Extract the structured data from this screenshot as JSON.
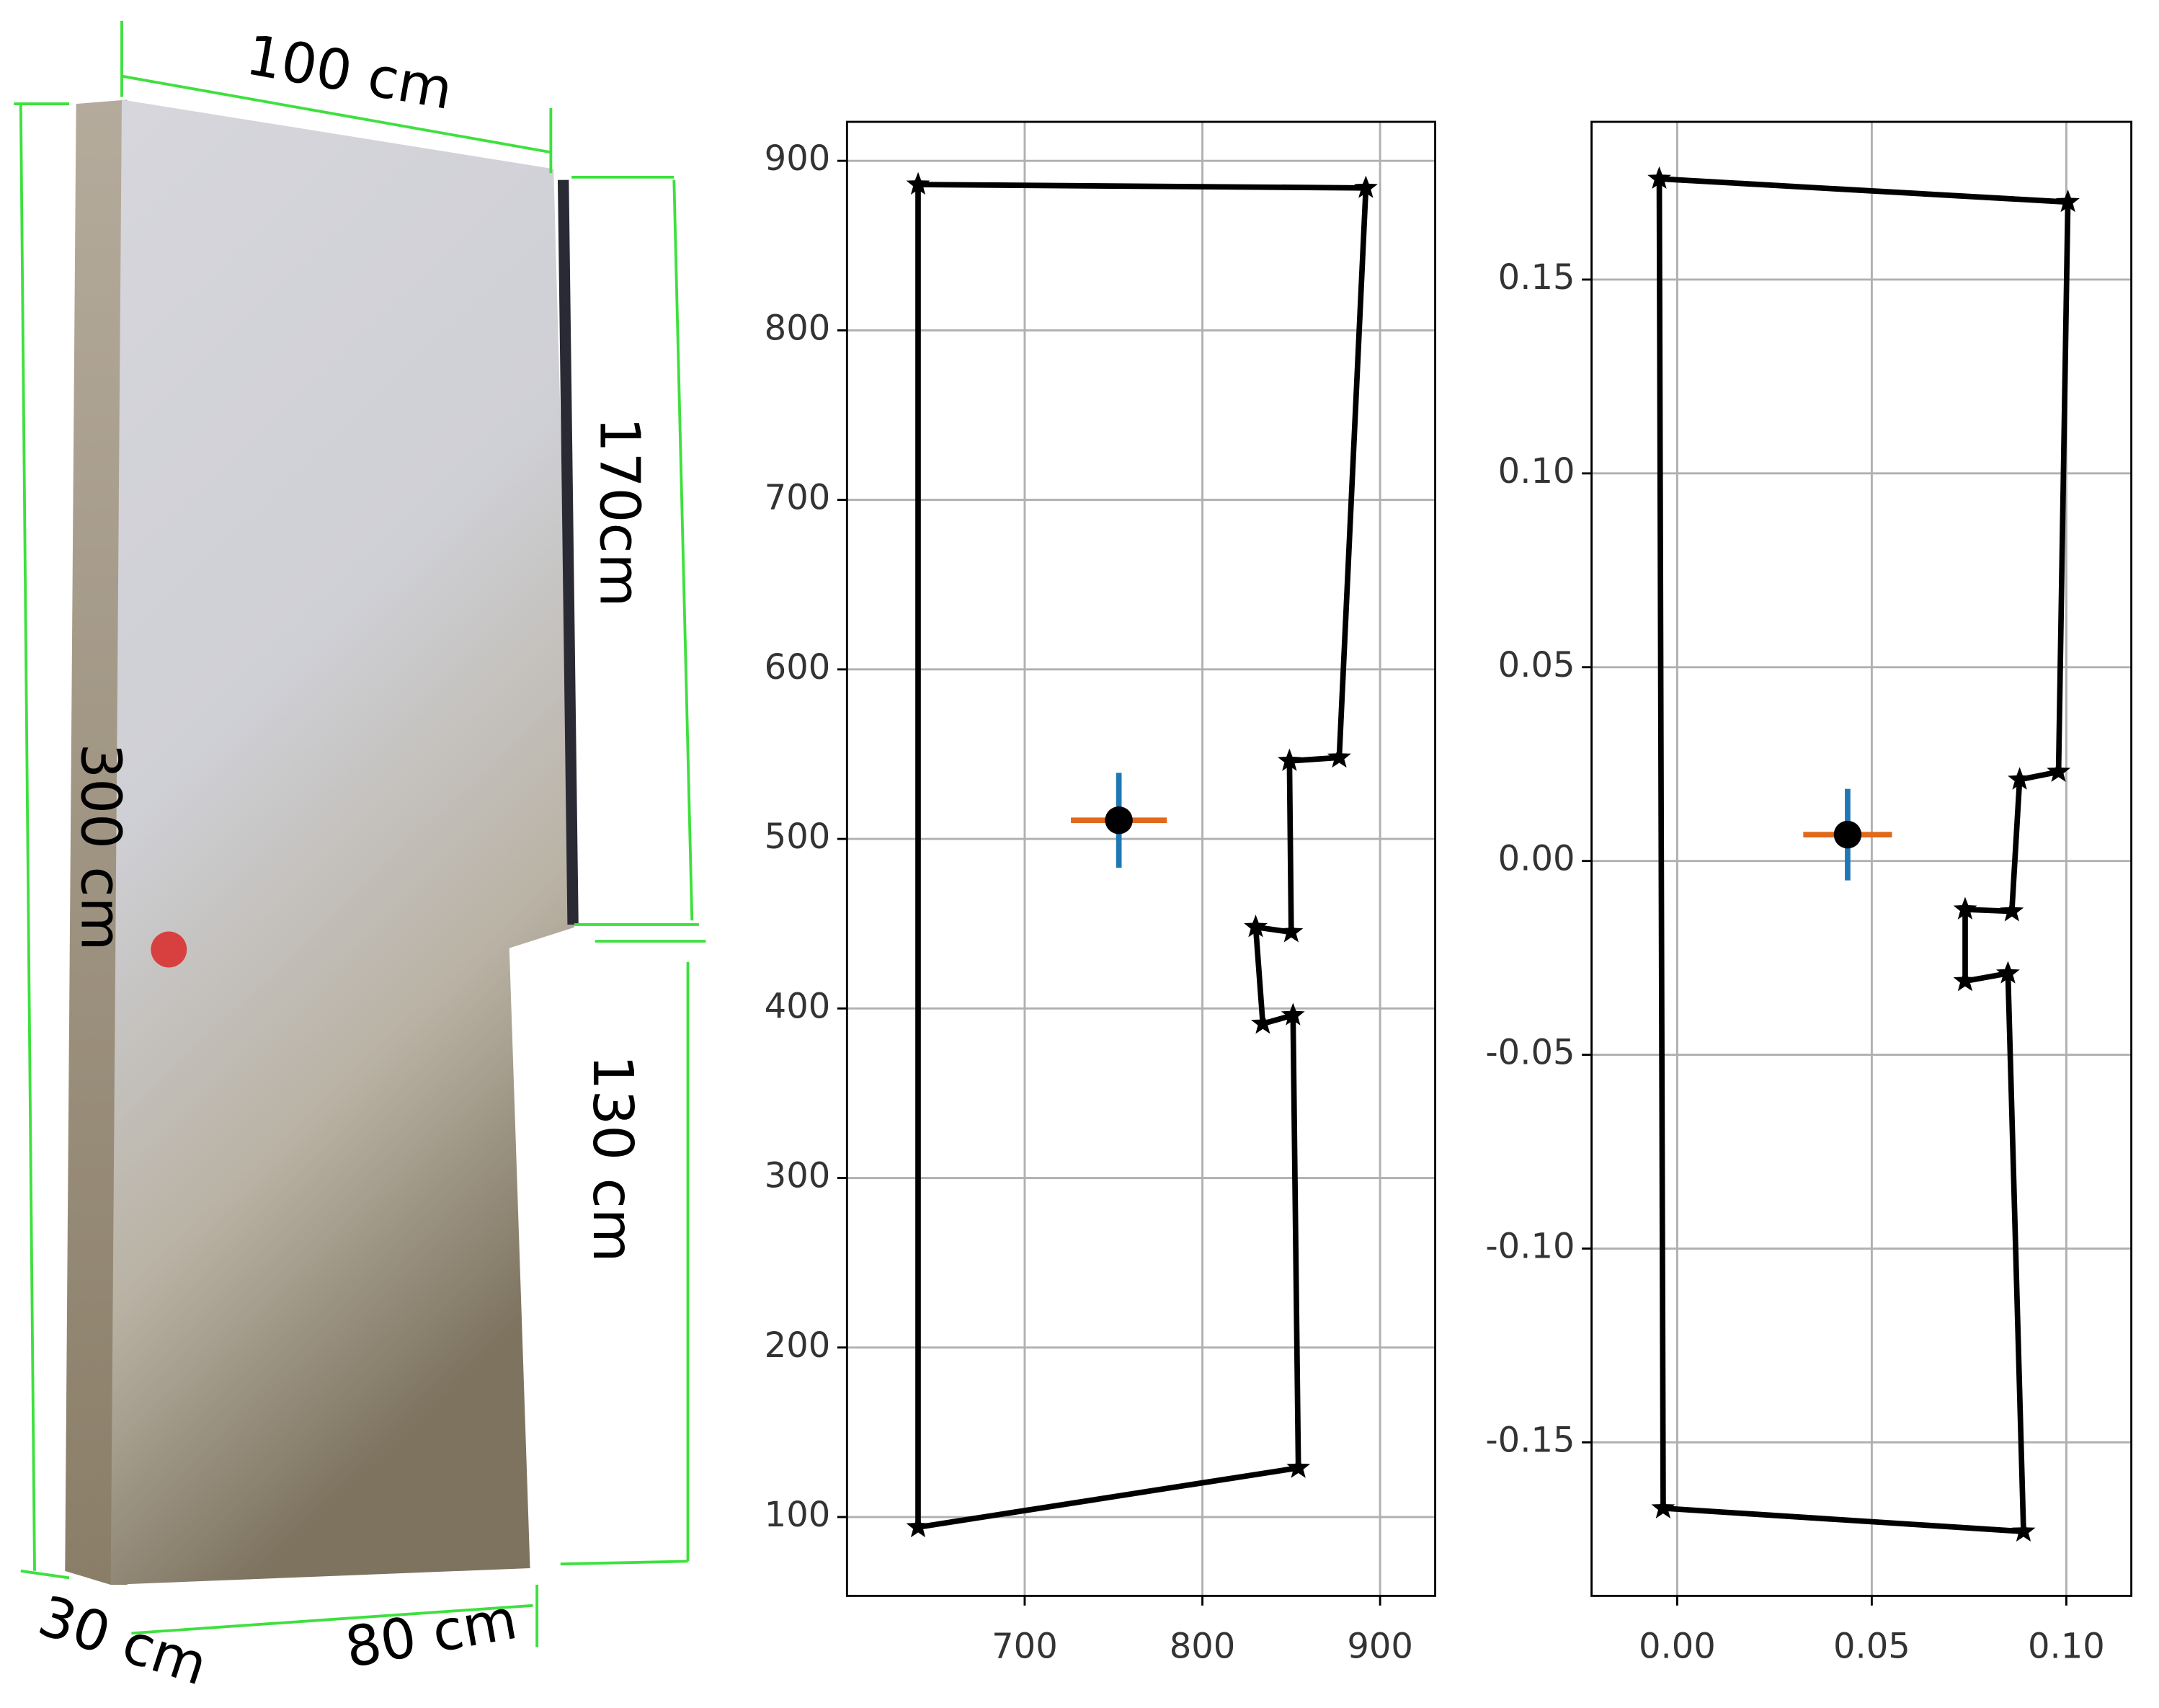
{
  "photo": {
    "labels": [
      "100 cm",
      "170cm",
      "300 cm",
      "130 cm",
      "30 cm",
      "80 cm"
    ]
  },
  "chart_data": [
    {
      "type": "line",
      "closed": true,
      "marker": "star",
      "grid": true,
      "xlim": [
        600,
        931
      ],
      "ylim": [
        53.5,
        923
      ],
      "xticks": [
        700,
        800,
        900
      ],
      "yticks": [
        100,
        200,
        300,
        400,
        500,
        600,
        700,
        800,
        900
      ],
      "series": [
        {
          "color": "#000000",
          "x": [
            640,
            892,
            877,
            849,
            850,
            830,
            834,
            851,
            854,
            640
          ],
          "y": [
            886,
            884,
            548,
            546,
            445,
            448,
            391,
            396,
            129,
            94
          ]
        }
      ],
      "point": {
        "x": 753,
        "y": 511,
        "xerr": 27,
        "yerr": 28,
        "color": "#000000",
        "xerr_color": "#e0691a",
        "yerr_color": "#1f77b4"
      }
    },
    {
      "type": "line",
      "closed": true,
      "marker": "star",
      "grid": true,
      "xlim": [
        -0.022,
        0.1167
      ],
      "ylim": [
        -0.1896,
        0.1907
      ],
      "xticks": [
        {
          "value": 0,
          "label": "0.00"
        },
        0.05,
        {
          "value": 0.1,
          "label": "0.10"
        }
      ],
      "yticks": [
        -0.15,
        {
          "value": -0.1,
          "label": "-0.10"
        },
        -0.05,
        {
          "value": 0,
          "label": "0.00"
        },
        0.05,
        {
          "value": 0.1,
          "label": "0.10"
        },
        0.15
      ],
      "series": [
        {
          "color": "#000000",
          "x": [
            -0.0046,
            0.1004,
            0.098,
            0.088,
            0.086,
            0.074,
            0.074,
            0.085,
            0.089,
            -0.0036
          ],
          "y": [
            0.176,
            0.17,
            0.023,
            0.021,
            -0.013,
            -0.0125,
            -0.031,
            -0.029,
            -0.173,
            -0.167
          ]
        }
      ],
      "point": {
        "x": 0.0438,
        "y": 0.0068,
        "xerr": 0.0114,
        "yerr": 0.0118,
        "color": "#000000",
        "xerr_color": "#e0691a",
        "yerr_color": "#1f77b4"
      }
    }
  ]
}
